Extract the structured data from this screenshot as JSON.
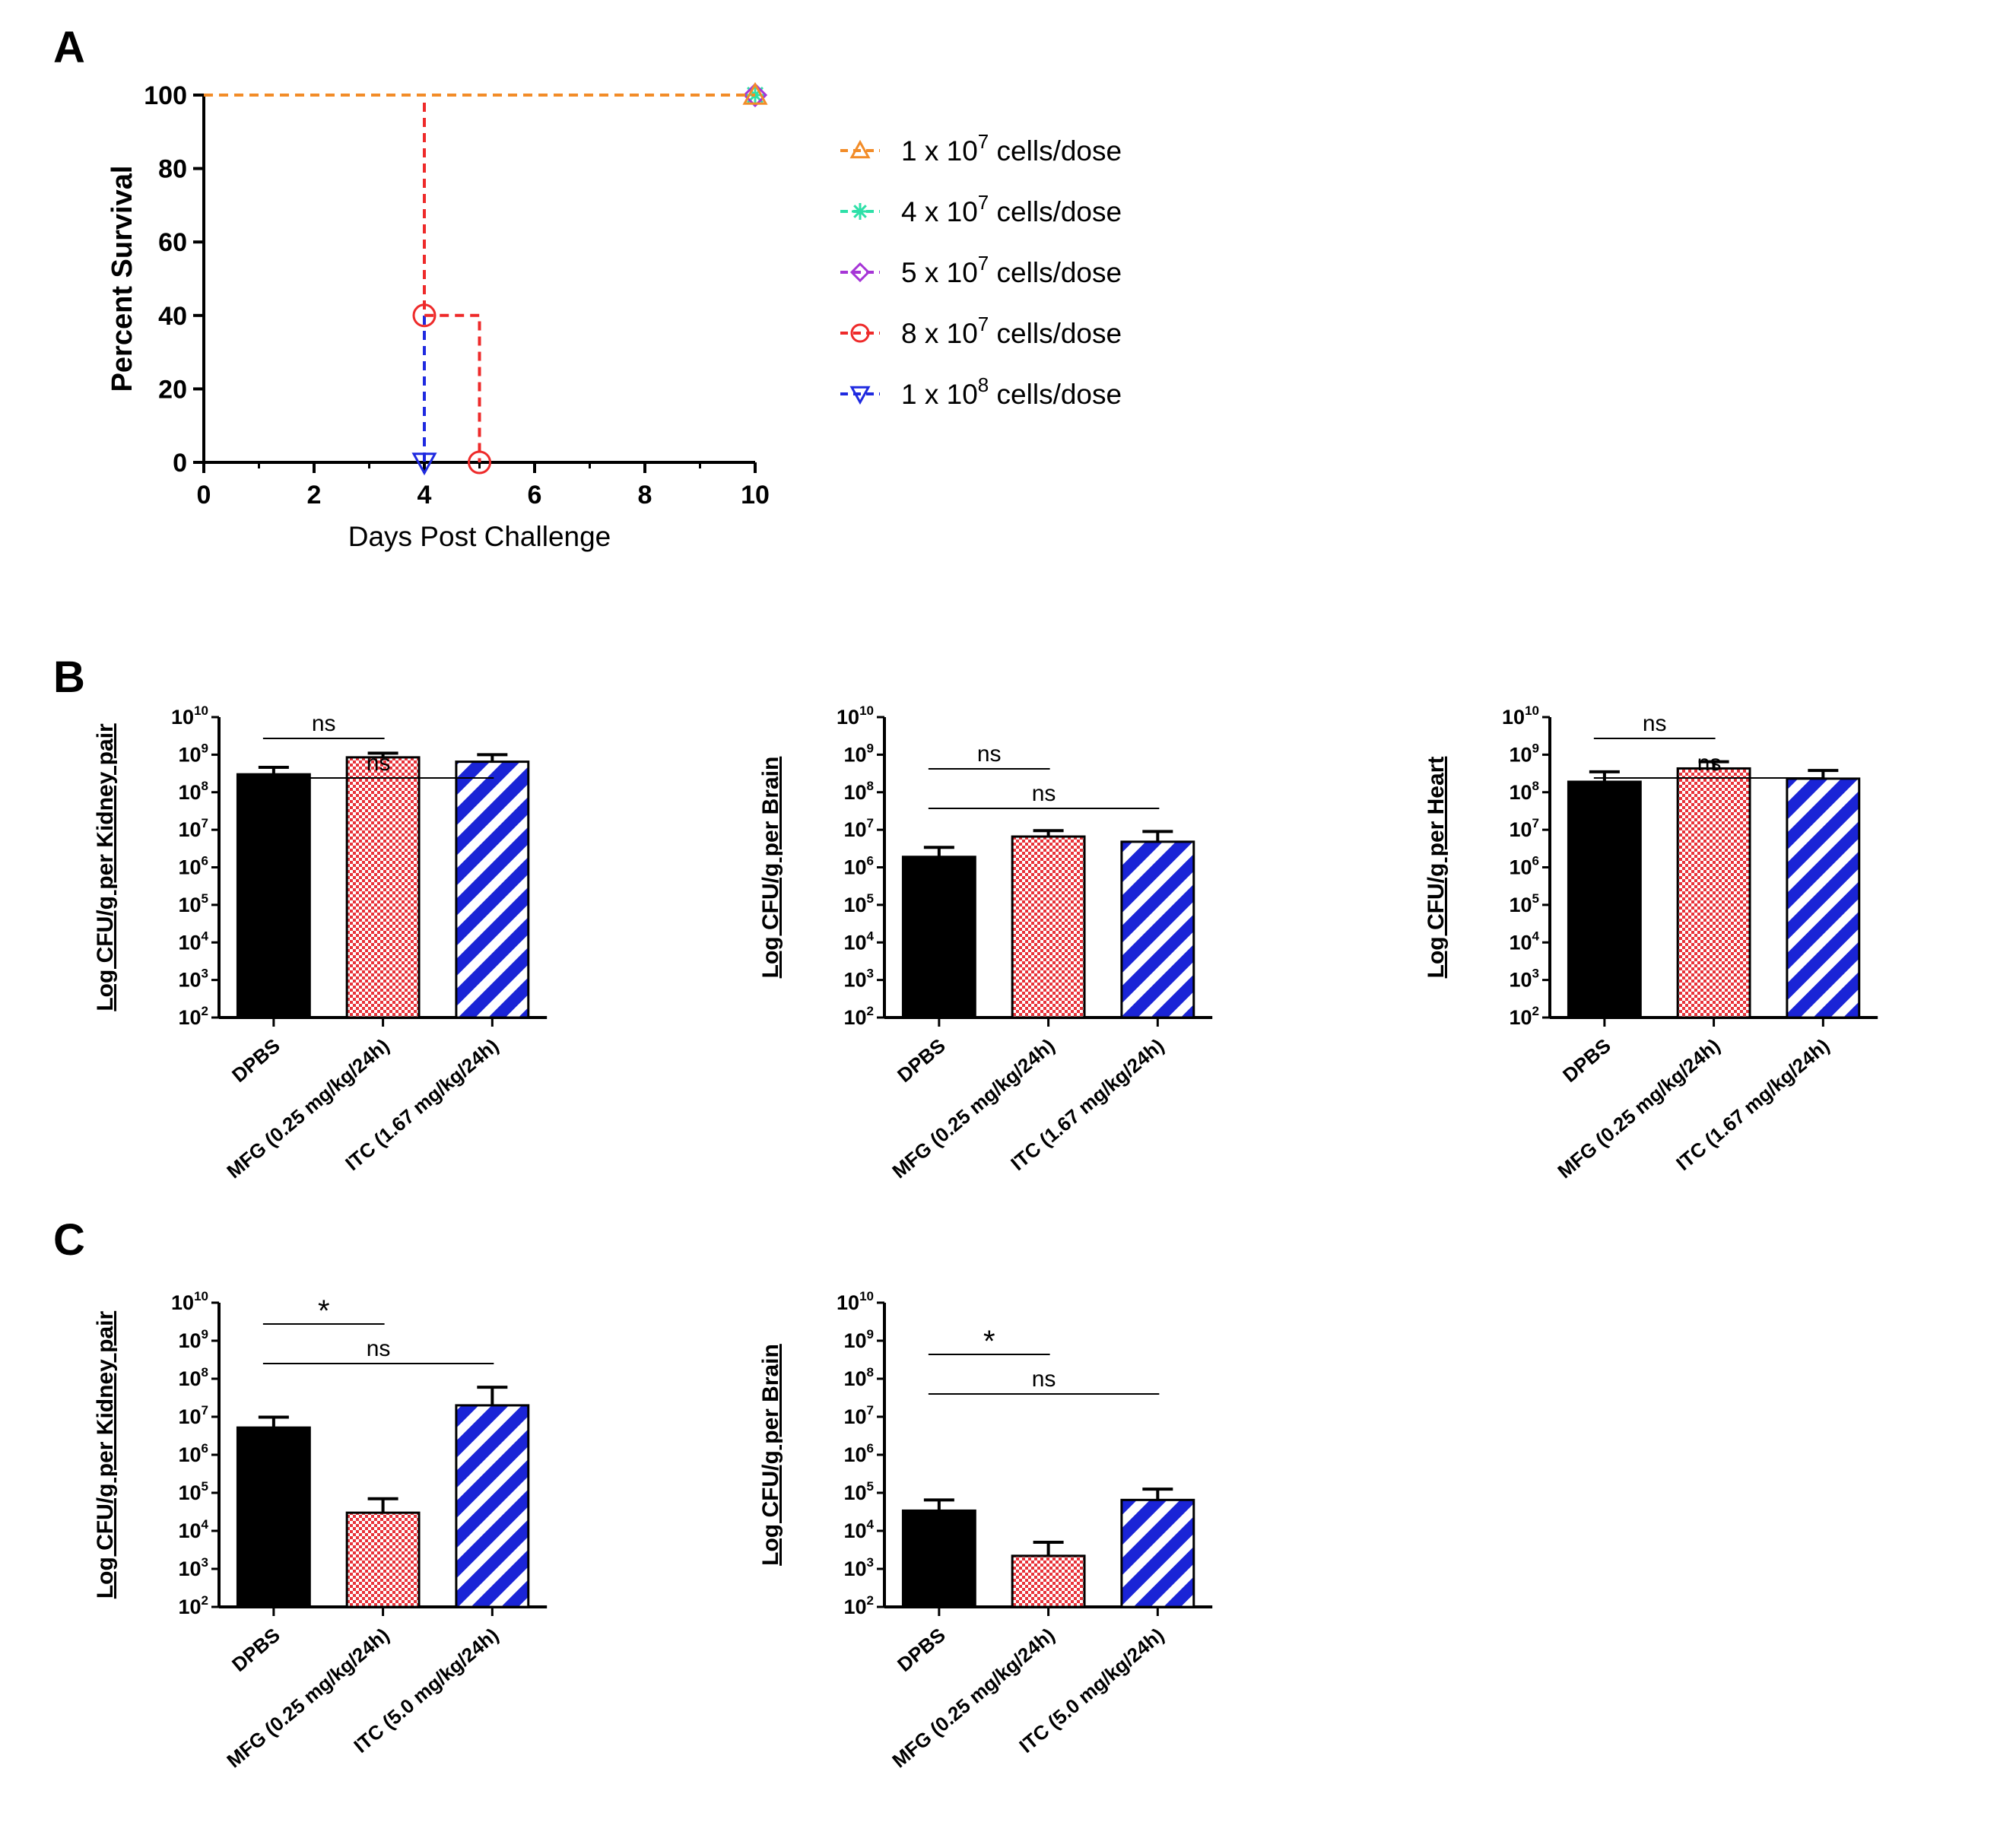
{
  "panels": [
    "A",
    "B",
    "C"
  ],
  "chart_data": [
    {
      "panel": "A",
      "type": "line",
      "xlabel": "Days Post Challenge",
      "ylabel": "Percent Survival",
      "xlim": [
        0,
        10
      ],
      "ylim": [
        0,
        100
      ],
      "xticks": [
        "0",
        "2",
        "4",
        "6",
        "8",
        "10"
      ],
      "yticks": [
        "0",
        "20",
        "40",
        "60",
        "80",
        "100"
      ],
      "legend_position": "right",
      "series": [
        {
          "name_prefix": "1 x 10",
          "name_exp": "7",
          "name_suffix": " cells/dose",
          "color": "#f28c28",
          "marker": "triangle-up",
          "x": [
            0,
            10
          ],
          "y": [
            100,
            100
          ]
        },
        {
          "name_prefix": "4 x 10",
          "name_exp": "7",
          "name_suffix": " cells/dose",
          "color": "#2ee0a8",
          "marker": "star",
          "x": [
            0,
            10
          ],
          "y": [
            100,
            100
          ]
        },
        {
          "name_prefix": "5 x 10",
          "name_exp": "7",
          "name_suffix": " cells/dose",
          "color": "#a635d6",
          "marker": "diamond",
          "x": [
            0,
            10
          ],
          "y": [
            100,
            100
          ]
        },
        {
          "name_prefix": "8 x 10",
          "name_exp": "7",
          "name_suffix": " cells/dose",
          "color": "#ee2a2a",
          "marker": "circle",
          "x": [
            0,
            4,
            4,
            5,
            5
          ],
          "y": [
            100,
            100,
            40,
            40,
            0
          ]
        },
        {
          "name_prefix": "1 x 10",
          "name_exp": "8",
          "name_suffix": " cells/dose",
          "color": "#1f2ae0",
          "marker": "triangle-down",
          "x": [
            0,
            4,
            4
          ],
          "y": [
            100,
            100,
            0
          ]
        }
      ]
    },
    {
      "panel": "B",
      "type": "bar",
      "ylabel": "Log CFU/g per Kidney pair",
      "ylim_log10": [
        2,
        10
      ],
      "categories": [
        "DPBS",
        "MFG (0.25 mg/kg/24h)",
        "ITC (1.67 mg/kg/24h)"
      ],
      "values": [
        300000000,
        850000000,
        650000000
      ],
      "errors_upper": [
        460000000,
        1100000000,
        1000000000
      ],
      "significance": [
        {
          "label": "ns",
          "from": 0,
          "to": 1
        },
        {
          "label": "ns",
          "from": 0,
          "to": 2
        }
      ]
    },
    {
      "panel": "B",
      "type": "bar",
      "ylabel": "Log CFU/g per Brain",
      "ylim_log10": [
        2,
        10
      ],
      "categories": [
        "DPBS",
        "MFG (0.25 mg/kg/24h)",
        "ITC (1.67 mg/kg/24h)"
      ],
      "values": [
        1900000,
        6600000,
        4800000
      ],
      "errors_upper": [
        3400000,
        9500000,
        9000000
      ],
      "significance": [
        {
          "label": "ns",
          "from": 0,
          "to": 1
        },
        {
          "label": "ns",
          "from": 0,
          "to": 2
        }
      ]
    },
    {
      "panel": "B",
      "type": "bar",
      "ylabel": "Log CFU/g per Heart",
      "ylim_log10": [
        2,
        10
      ],
      "categories": [
        "DPBS",
        "MFG (0.25 mg/kg/24h)",
        "ITC (1.67 mg/kg/24h)"
      ],
      "values": [
        190000000,
        430000000,
        230000000
      ],
      "errors_upper": [
        350000000,
        650000000,
        380000000
      ],
      "significance": [
        {
          "label": "ns",
          "from": 0,
          "to": 1
        },
        {
          "label": "ns",
          "from": 0,
          "to": 2
        }
      ]
    },
    {
      "panel": "C",
      "type": "bar",
      "ylabel": "Log CFU/g per Kidney pair",
      "ylim_log10": [
        2,
        10
      ],
      "categories": [
        "DPBS",
        "MFG (0.25 mg/kg/24h)",
        "ITC (5.0 mg/kg/24h)"
      ],
      "values": [
        5200000,
        30000,
        20000000
      ],
      "errors_upper": [
        9800000,
        70000,
        60000000
      ],
      "significance": [
        {
          "label": "*",
          "from": 0,
          "to": 1
        },
        {
          "label": "ns",
          "from": 0,
          "to": 2
        }
      ]
    },
    {
      "panel": "C",
      "type": "bar",
      "ylabel": "Log CFU/g per Brain",
      "ylim_log10": [
        2,
        10
      ],
      "categories": [
        "DPBS",
        "MFG (0.25 mg/kg/24h)",
        "ITC (5.0 mg/kg/24h)"
      ],
      "values": [
        34000,
        2200,
        65000
      ],
      "errors_upper": [
        65000,
        5000,
        125000
      ],
      "significance": [
        {
          "label": "*",
          "from": 0,
          "to": 1
        },
        {
          "label": "ns",
          "from": 0,
          "to": 2
        }
      ]
    }
  ],
  "colors": {
    "dpbs": "#000000",
    "mfg": "#e8333a",
    "itc": "#1a24d6"
  }
}
